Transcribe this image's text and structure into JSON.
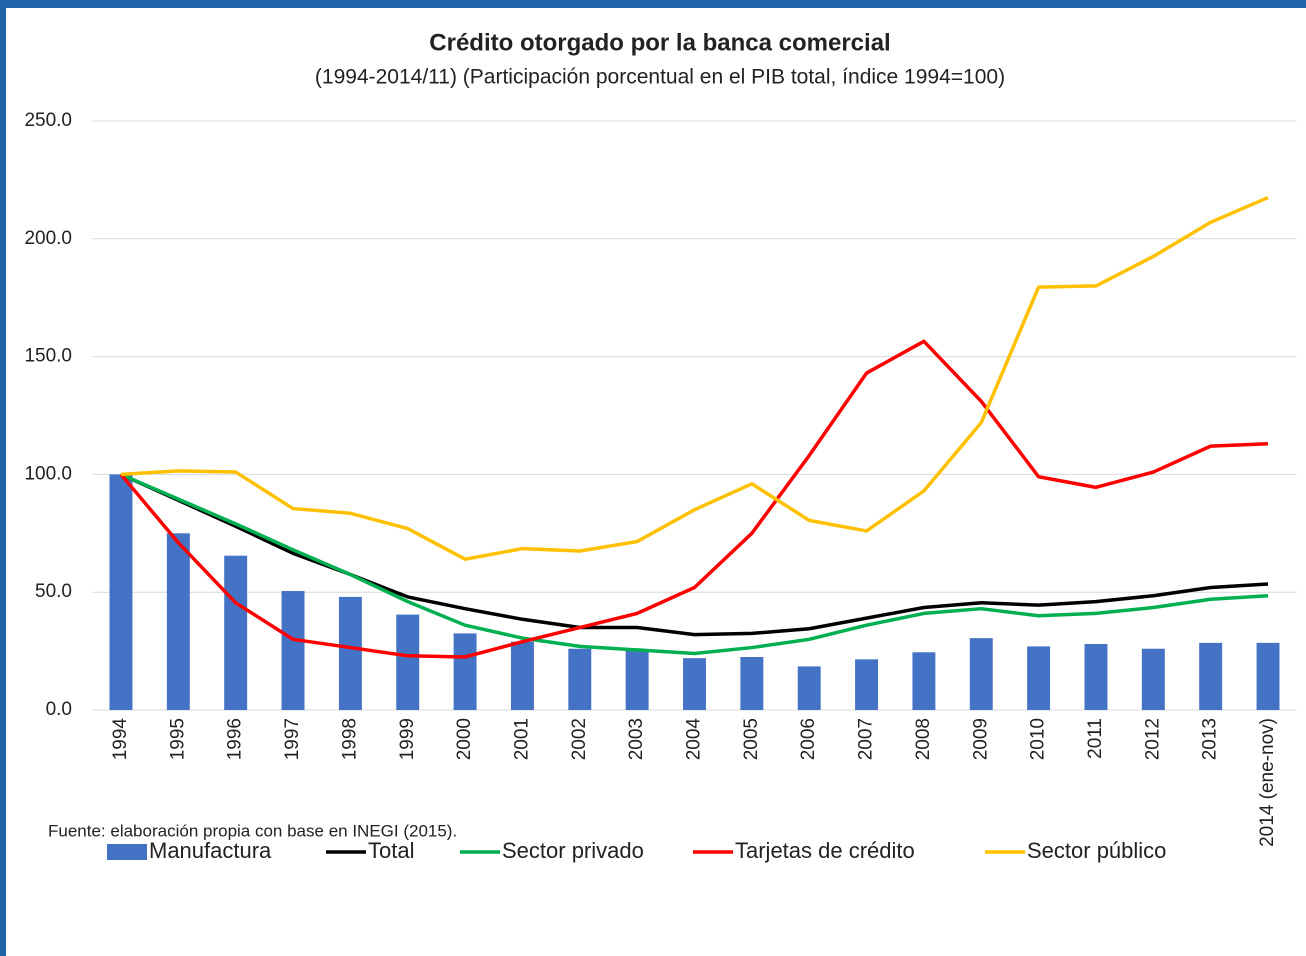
{
  "chart_data": {
    "type": "bar_line",
    "title": "Crédito otorgado por la banca comercial",
    "subtitle": "(1994-2014/11) (Participación porcentual en el PIB total, índice 1994=100)",
    "source": "Fuente: elaboración propia con base en INEGI (2015).",
    "categories": [
      "1994",
      "1995",
      "1996",
      "1997",
      "1998",
      "1999",
      "2000",
      "2001",
      "2002",
      "2003",
      "2004",
      "2005",
      "2006",
      "2007",
      "2008",
      "2009",
      "2010",
      "2011",
      "2012",
      "2013",
      "2014 (ene-nov)"
    ],
    "ylim": [
      0,
      250
    ],
    "yticks": [
      {
        "value": 0,
        "label": "0.0"
      },
      {
        "value": 50,
        "label": "50.0"
      },
      {
        "value": 100,
        "label": "100.0"
      },
      {
        "value": 150,
        "label": "150.0"
      },
      {
        "value": 200,
        "label": "200.0"
      },
      {
        "value": 250,
        "label": "250.0"
      }
    ],
    "grid": true,
    "series": [
      {
        "name": "Manufactura",
        "type": "bar",
        "color": "#4472c4",
        "values": [
          100,
          75,
          65.5,
          50.5,
          48,
          40.5,
          32.5,
          29,
          26,
          25.5,
          22,
          22.5,
          18.5,
          21.5,
          24.5,
          30.5,
          27,
          28,
          26,
          28.5,
          28.5
        ]
      },
      {
        "name": "Total",
        "type": "line",
        "color": "#000000",
        "values": [
          100,
          89,
          78,
          66.5,
          57.5,
          48,
          43,
          38.5,
          35,
          35,
          32,
          32.5,
          34.5,
          39,
          43.5,
          45.5,
          44.5,
          46,
          48.5,
          52,
          53.5
        ]
      },
      {
        "name": "Sector privado",
        "type": "line",
        "color": "#00b050",
        "values": [
          100,
          89.5,
          79,
          68,
          57.5,
          46,
          36,
          30.5,
          27,
          25.5,
          24,
          26.5,
          30,
          36,
          41,
          43,
          40,
          41,
          43.5,
          47,
          48.5
        ]
      },
      {
        "name": "Tarjetas de crédito",
        "type": "line",
        "color": "#ff0000",
        "values": [
          100,
          71,
          45.5,
          30,
          26.5,
          23,
          22.5,
          29,
          35,
          41,
          52,
          75,
          108,
          143,
          156.5,
          131,
          99,
          94.5,
          101,
          112,
          113
        ]
      },
      {
        "name": "Sector público",
        "type": "line",
        "color": "#ffc000",
        "values": [
          100,
          101.5,
          101,
          85.5,
          83.5,
          77,
          64,
          68.5,
          67.5,
          71.5,
          85,
          96,
          80.5,
          76,
          93,
          122,
          179.5,
          180,
          192.5,
          207,
          217.5
        ]
      }
    ]
  }
}
